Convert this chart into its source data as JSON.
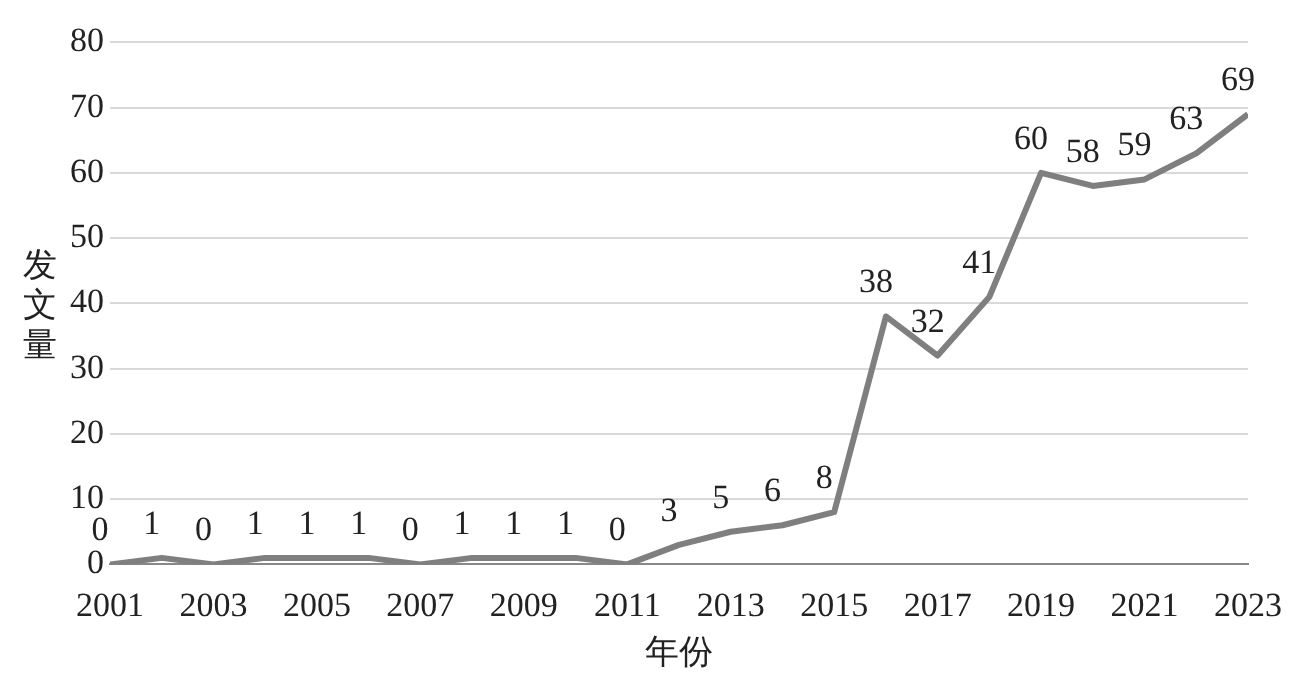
{
  "chart_data": {
    "type": "line",
    "xlabel": "年份",
    "ylabel": "发文量",
    "x": [
      2001,
      2002,
      2003,
      2004,
      2005,
      2006,
      2007,
      2008,
      2009,
      2010,
      2011,
      2012,
      2013,
      2014,
      2015,
      2016,
      2017,
      2018,
      2019,
      2020,
      2021,
      2022,
      2023
    ],
    "series": [
      {
        "color": "#7f7f7f",
        "values": [
          0,
          1,
          0,
          1,
          1,
          1,
          0,
          1,
          1,
          1,
          0,
          3,
          5,
          6,
          8,
          38,
          32,
          41,
          60,
          58,
          59,
          63,
          69
        ]
      }
    ],
    "xlim": [
      2001,
      2023
    ],
    "xticks": [
      2001,
      2003,
      2005,
      2007,
      2009,
      2011,
      2013,
      2015,
      2017,
      2019,
      2021,
      2023
    ],
    "ylim": [
      0,
      80
    ],
    "yticks": [
      0,
      10,
      20,
      30,
      40,
      50,
      60,
      70,
      80
    ],
    "grid": "y",
    "legend": false,
    "marker": "none",
    "line_style": "solid",
    "data_labels": true
  }
}
